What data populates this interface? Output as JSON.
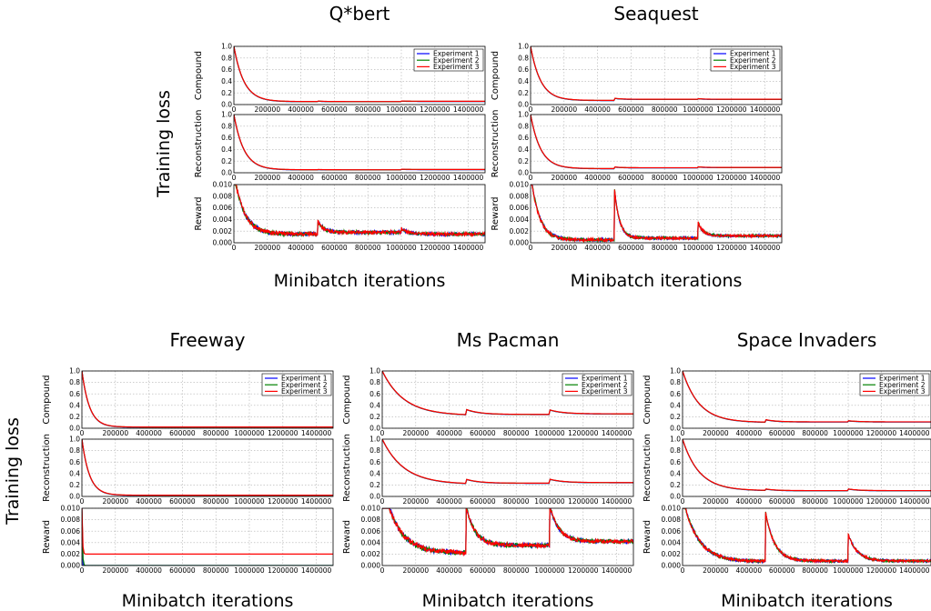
{
  "figure": {
    "row_label": "Training loss",
    "x_label": "Minibatch iterations",
    "panel_labels": [
      "Compound",
      "Reconstruction",
      "Reward"
    ],
    "legend": [
      "Experiment 1",
      "Experiment 2",
      "Experiment 3"
    ],
    "colors": {
      "exp1": "#0000ff",
      "exp2": "#008000",
      "exp3": "#ff0000"
    }
  },
  "chart_data": [
    {
      "type": "line",
      "title": "Q*bert",
      "xlim": [
        0,
        1500000
      ],
      "xticks": [
        0,
        200000,
        400000,
        600000,
        800000,
        1000000,
        1200000,
        1400000
      ],
      "panels": [
        {
          "ylabel": "Compound",
          "ylim": [
            0,
            1.0
          ],
          "yticks": [
            "0.0",
            "0.2",
            "0.4",
            "0.6",
            "0.8",
            "1.0"
          ],
          "curve": {
            "start": 1.0,
            "floor": 0.05,
            "tau": 60000,
            "bumps": [
              [
                500000,
                0.06,
                0.05
              ],
              [
                1000000,
                0.06,
                0.055
              ]
            ],
            "noise": 0.0
          }
        },
        {
          "ylabel": "Reconstruction",
          "ylim": [
            0,
            1.0
          ],
          "yticks": [
            "0.0",
            "0.2",
            "0.4",
            "0.6",
            "0.8",
            "1.0"
          ],
          "curve": {
            "start": 1.0,
            "floor": 0.05,
            "tau": 60000,
            "bumps": [
              [
                500000,
                0.055,
                0.05
              ],
              [
                1000000,
                0.06,
                0.055
              ]
            ],
            "noise": 0.0
          }
        },
        {
          "ylabel": "Reward",
          "ylim": [
            0,
            0.01
          ],
          "yticks": [
            "0.000",
            "0.002",
            "0.004",
            "0.006",
            "0.008",
            "0.010"
          ],
          "curve": {
            "start": 0.012,
            "floor": 0.0015,
            "tau": 60000,
            "bumps": [
              [
                500000,
                0.0038,
                0.0018
              ],
              [
                1000000,
                0.0025,
                0.0015
              ]
            ],
            "noise": 0.0004
          }
        }
      ]
    },
    {
      "type": "line",
      "title": "Seaquest",
      "xlim": [
        0,
        1500000
      ],
      "xticks": [
        0,
        200000,
        400000,
        600000,
        800000,
        1000000,
        1200000,
        1400000
      ],
      "panels": [
        {
          "ylabel": "Compound",
          "ylim": [
            0,
            1.0
          ],
          "yticks": [
            "0.0",
            "0.2",
            "0.4",
            "0.6",
            "0.8",
            "1.0"
          ],
          "curve": {
            "start": 1.0,
            "floor": 0.07,
            "tau": 60000,
            "bumps": [
              [
                500000,
                0.11,
                0.09
              ],
              [
                1000000,
                0.1,
                0.09
              ]
            ],
            "noise": 0.0
          }
        },
        {
          "ylabel": "Reconstruction",
          "ylim": [
            0,
            1.0
          ],
          "yticks": [
            "0.0",
            "0.2",
            "0.4",
            "0.6",
            "0.8",
            "1.0"
          ],
          "curve": {
            "start": 1.0,
            "floor": 0.07,
            "tau": 60000,
            "bumps": [
              [
                500000,
                0.1,
                0.085
              ],
              [
                1000000,
                0.1,
                0.09
              ]
            ],
            "noise": 0.0
          }
        },
        {
          "ylabel": "Reward",
          "ylim": [
            0,
            0.01
          ],
          "yticks": [
            "0.000",
            "0.002",
            "0.004",
            "0.006",
            "0.008",
            "0.010"
          ],
          "curve": {
            "start": 0.012,
            "floor": 0.0005,
            "tau": 50000,
            "bumps": [
              [
                500000,
                0.0095,
                0.0008
              ],
              [
                1000000,
                0.0035,
                0.0012
              ]
            ],
            "noise": 0.0003
          }
        }
      ]
    },
    {
      "type": "line",
      "title": "Freeway",
      "xlim": [
        0,
        1500000
      ],
      "xticks": [
        0,
        200000,
        400000,
        600000,
        800000,
        1000000,
        1200000,
        1400000
      ],
      "panels": [
        {
          "ylabel": "Compound",
          "ylim": [
            0,
            1.0
          ],
          "yticks": [
            "0.0",
            "0.2",
            "0.4",
            "0.6",
            "0.8",
            "1.0"
          ],
          "curve": {
            "start": 1.0,
            "floor": 0.02,
            "tau": 45000,
            "bumps": [],
            "noise": 0.0
          }
        },
        {
          "ylabel": "Reconstruction",
          "ylim": [
            0,
            1.0
          ],
          "yticks": [
            "0.0",
            "0.2",
            "0.4",
            "0.6",
            "0.8",
            "1.0"
          ],
          "curve": {
            "start": 1.0,
            "floor": 0.02,
            "tau": 45000,
            "bumps": [],
            "noise": 0.0
          }
        },
        {
          "ylabel": "Reward",
          "ylim": [
            0,
            0.01
          ],
          "yticks": [
            "0.000",
            "0.002",
            "0.004",
            "0.006",
            "0.008",
            "0.010"
          ],
          "curve": {
            "start": 0.012,
            "floor": 0.0,
            "tau": 3000,
            "bumps": [],
            "noise": 0.0
          }
        }
      ]
    },
    {
      "type": "line",
      "title": "Ms Pacman",
      "xlim": [
        0,
        1500000
      ],
      "xticks": [
        0,
        200000,
        400000,
        600000,
        800000,
        1000000,
        1200000,
        1400000
      ],
      "panels": [
        {
          "ylabel": "Compound",
          "ylim": [
            0,
            1.0
          ],
          "yticks": [
            "0.0",
            "0.2",
            "0.4",
            "0.6",
            "0.8",
            "1.0"
          ],
          "curve": {
            "start": 1.0,
            "floor": 0.22,
            "tau": 130000,
            "bumps": [
              [
                500000,
                0.33,
                0.24
              ],
              [
                1000000,
                0.32,
                0.25
              ]
            ],
            "noise": 0.0
          }
        },
        {
          "ylabel": "Reconstruction",
          "ylim": [
            0,
            1.0
          ],
          "yticks": [
            "0.0",
            "0.2",
            "0.4",
            "0.6",
            "0.8",
            "1.0"
          ],
          "curve": {
            "start": 1.0,
            "floor": 0.21,
            "tau": 130000,
            "bumps": [
              [
                500000,
                0.3,
                0.23
              ],
              [
                1000000,
                0.3,
                0.24
              ]
            ],
            "noise": 0.0
          }
        },
        {
          "ylabel": "Reward",
          "ylim": [
            0,
            0.01
          ],
          "yticks": [
            "0.000",
            "0.002",
            "0.004",
            "0.006",
            "0.008",
            "0.010"
          ],
          "curve": {
            "start": 0.015,
            "floor": 0.0022,
            "tau": 90000,
            "bumps": [
              [
                500000,
                0.0105,
                0.0035
              ],
              [
                1000000,
                0.0105,
                0.0042
              ]
            ],
            "noise": 0.0005
          }
        }
      ]
    },
    {
      "type": "line",
      "title": "Space Invaders",
      "xlim": [
        0,
        1500000
      ],
      "xticks": [
        0,
        200000,
        400000,
        600000,
        800000,
        1000000,
        1200000,
        1400000
      ],
      "panels": [
        {
          "ylabel": "Compound",
          "ylim": [
            0,
            1.0
          ],
          "yticks": [
            "0.0",
            "0.2",
            "0.4",
            "0.6",
            "0.8",
            "1.0"
          ],
          "curve": {
            "start": 1.0,
            "floor": 0.1,
            "tau": 100000,
            "bumps": [
              [
                500000,
                0.15,
                0.11
              ],
              [
                1000000,
                0.13,
                0.11
              ]
            ],
            "noise": 0.0
          }
        },
        {
          "ylabel": "Reconstruction",
          "ylim": [
            0,
            1.0
          ],
          "yticks": [
            "0.0",
            "0.2",
            "0.4",
            "0.6",
            "0.8",
            "1.0"
          ],
          "curve": {
            "start": 1.0,
            "floor": 0.1,
            "tau": 100000,
            "bumps": [
              [
                500000,
                0.13,
                0.1
              ],
              [
                1000000,
                0.13,
                0.1
              ]
            ],
            "noise": 0.0
          }
        },
        {
          "ylabel": "Reward",
          "ylim": [
            0,
            0.01
          ],
          "yticks": [
            "0.000",
            "0.002",
            "0.004",
            "0.006",
            "0.008",
            "0.010"
          ],
          "curve": {
            "start": 0.012,
            "floor": 0.0007,
            "tau": 90000,
            "bumps": [
              [
                500000,
                0.0095,
                0.0008
              ],
              [
                1000000,
                0.0055,
                0.0008
              ]
            ],
            "noise": 0.0003
          }
        }
      ]
    }
  ]
}
